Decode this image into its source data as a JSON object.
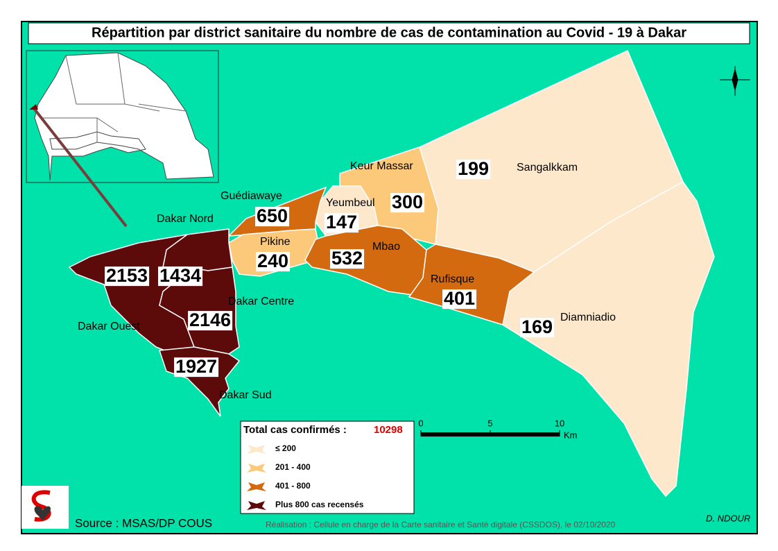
{
  "title": "Répartition par district sanitaire du nombre de cas de contamination au Covid - 19 à Dakar",
  "districts": [
    {
      "name": "Sangalkkam",
      "cases": 199,
      "color": "#fde8cc"
    },
    {
      "name": "Diamniadio",
      "cases": 169,
      "color": "#fde8cc"
    },
    {
      "name": "Keur Massar",
      "cases": 300,
      "color": "#fcc97a"
    },
    {
      "name": "Yeumbeul",
      "cases": 147,
      "color": "#fde8cc"
    },
    {
      "name": "Guédiawaye",
      "cases": 650,
      "color": "#d36a0f"
    },
    {
      "name": "Pikine",
      "cases": 240,
      "color": "#fcc97a"
    },
    {
      "name": "Mbao",
      "cases": 532,
      "color": "#d36a0f"
    },
    {
      "name": "Rufisque",
      "cases": 401,
      "color": "#d36a0f"
    },
    {
      "name": "Dakar Nord",
      "cases": 1434,
      "color": "#5c0a0a"
    },
    {
      "name": "Dakar Ouest",
      "cases": 2153,
      "color": "#5c0a0a"
    },
    {
      "name": "Dakar Centre",
      "cases": 2146,
      "color": "#5c0a0a"
    },
    {
      "name": "Dakar Sud",
      "cases": 1927,
      "color": "#5c0a0a"
    }
  ],
  "legend": {
    "total_label": "Total cas confirmés :",
    "total": 10298,
    "classes": [
      {
        "label": "≤ 200",
        "color": "#fde8cc"
      },
      {
        "label": "201 - 400",
        "color": "#fcc97a"
      },
      {
        "label": "401 - 800",
        "color": "#d36a0f"
      },
      {
        "label": "Plus 800 cas recensés",
        "color": "#5c0a0a"
      }
    ]
  },
  "scale": {
    "ticks": [
      0,
      5,
      10
    ],
    "unit": "Km"
  },
  "source": "Source : MSAS/DP COUS",
  "credit": "Réalisation : Cellule en charge de la Carte sanitaire et Santé digitale (CSSDOS), le 02/10/2020",
  "author": "D. NDOUR"
}
